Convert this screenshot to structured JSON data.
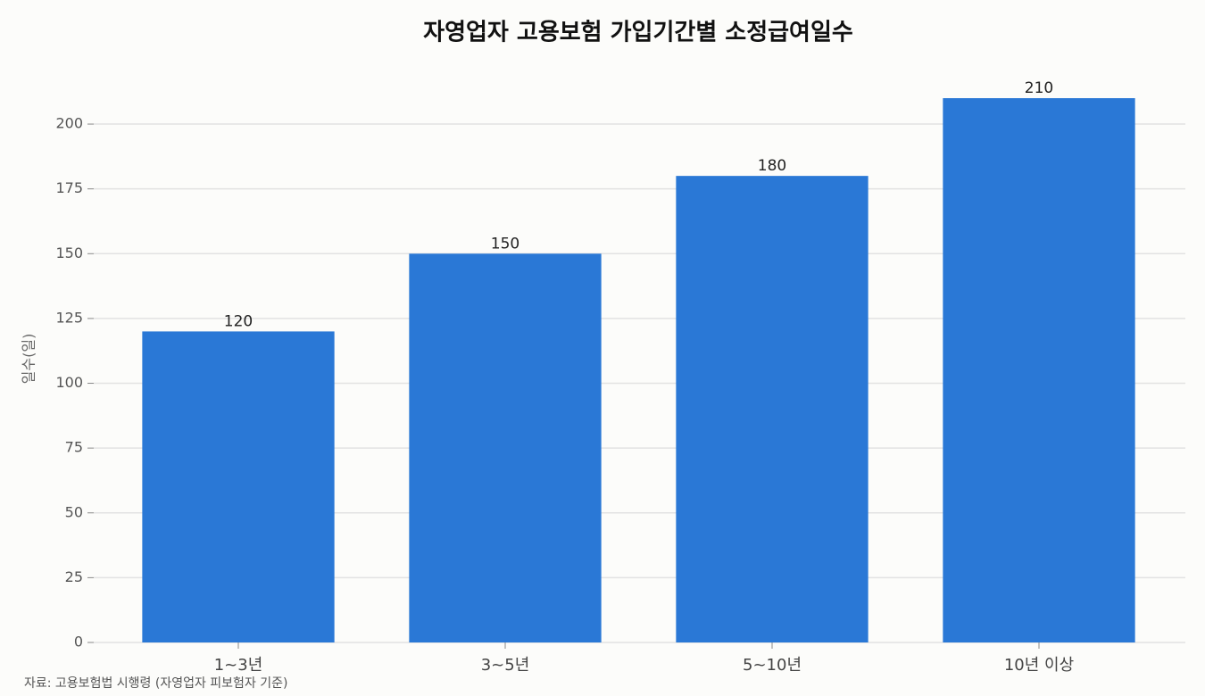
{
  "chart_data": {
    "type": "bar",
    "title": "자영업자 고용보험 가입기간별 소정급여일수",
    "y_label": "일수(일)",
    "source": "자료: 고용보험법 시행령 (자영업자 피보험자 기준)",
    "categories": [
      "1~3년",
      "3~5년",
      "5~10년",
      "10년 이상"
    ],
    "values": [
      120,
      150,
      180,
      210
    ],
    "color": "#2a78d6",
    "ylim": [
      0,
      220.5
    ],
    "yticks": [
      0,
      25,
      50,
      75,
      100,
      125,
      150,
      175,
      200
    ],
    "grid": true
  }
}
